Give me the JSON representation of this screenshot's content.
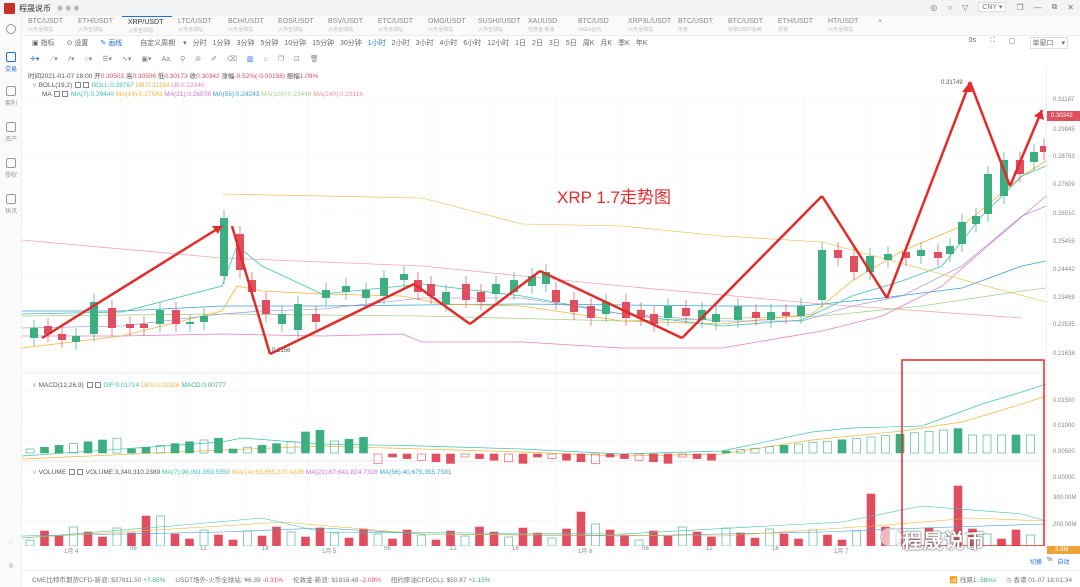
{
  "app": {
    "title": "程晟说币",
    "window_controls": [
      "restore-icon",
      "minimize-icon",
      "maximize-icon",
      "close-icon"
    ],
    "currency": "CNY"
  },
  "sidebar": {
    "items": [
      {
        "label": "交易",
        "icon": "trade-icon",
        "active": true
      },
      {
        "label": "套利",
        "icon": "arbitrage-icon"
      },
      {
        "label": "资产",
        "icon": "wallet-icon"
      },
      {
        "label": "授权",
        "icon": "key-icon"
      },
      {
        "label": "快讯",
        "icon": "news-icon"
      }
    ]
  },
  "pairs": [
    {
      "name": "BTC/USDT",
      "sub": "火币全球站"
    },
    {
      "name": "ETH/USDT",
      "sub": "火币全球站"
    },
    {
      "name": "XRP/USDT",
      "sub": "火币全球站",
      "active": true
    },
    {
      "name": "LTC/USDT",
      "sub": "火币全球站"
    },
    {
      "name": "BCH/USDT",
      "sub": "火币全球站"
    },
    {
      "name": "EOS/USDT",
      "sub": "火币全球站"
    },
    {
      "name": "BSV/USDT",
      "sub": "火币全球站"
    },
    {
      "name": "ETC/USDT",
      "sub": "火币全球站"
    },
    {
      "name": "OMG/USDT",
      "sub": "火币全球站"
    },
    {
      "name": "SUSHI/USDT",
      "sub": "火币全球站"
    },
    {
      "name": "XAUUSD",
      "sub": "伦敦金-新浪"
    },
    {
      "name": "BTC/USD",
      "sub": "OKEx合约"
    },
    {
      "name": "XRP3L/USDT",
      "sub": "火币全球站"
    },
    {
      "name": "BTC/USDT",
      "sub": "币安"
    },
    {
      "name": "BTC/USDT",
      "sub": "币安USDT永续"
    },
    {
      "name": "ETH/USDT",
      "sub": "币安"
    },
    {
      "name": "HT/USDT",
      "sub": "火币全球站"
    }
  ],
  "toolbar": {
    "indicator": "指标",
    "settings": "设置",
    "draw": "画线",
    "custom_period": "自定义周期",
    "periods": [
      "分时",
      "1分钟",
      "3分钟",
      "5分钟",
      "10分钟",
      "15分钟",
      "30分钟",
      "1小时",
      "2小时",
      "3小时",
      "4小时",
      "6小时",
      "12小时",
      "1日",
      "2日",
      "3日",
      "5日",
      "周K",
      "月K",
      "季K",
      "年K"
    ],
    "active_period": "1小时",
    "countdown": "0s",
    "window_mode": "单窗口"
  },
  "info": {
    "time_label": "时间",
    "time": "2021-01-07 18:00",
    "open_label": "开",
    "open": "0.30503",
    "high_label": "高",
    "high": "0.30506",
    "low_label": "低",
    "low": "0.30173",
    "close_label": "收",
    "close": "0.30342",
    "change_label": "涨幅",
    "change": "-0.52%(-0.00158)",
    "amp_label": "振幅",
    "amp": "1.09%"
  },
  "boll": {
    "name": "BOLL(19,2)",
    "boll": "BOLL:0.26767",
    "ub": "UB:0.31194",
    "lb": "LB:0.22340"
  },
  "ma": {
    "name": "MA",
    "ma7": "MA(7):0.29440",
    "ma14": "MA(14):0.27543",
    "ma21": "MA(21):0.26578",
    "ma56": "MA(56):0.24243",
    "ma120": "MA(120):0.23446",
    "ma240": "MA(240):0.23116"
  },
  "macd": {
    "name": "MACD(12,26,9)",
    "dif": "DIF:0.01714",
    "dea": "DEA:0.01326",
    "macd": "MACD:0.00777"
  },
  "volume": {
    "name": "VOLUME",
    "vol": "VOLUME:3,340,310.2389",
    "ma7": "MA(7):96,091,859.5550",
    "ma14": "MA(14):63,655,220.4338",
    "ma21": "MA(21):67,641,824.7328",
    "ma56": "MA(56):40,675,355.7581"
  },
  "price_axis": [
    "0.31187",
    "0.29945",
    "0.28753",
    "0.27609",
    "0.26510",
    "0.25455",
    "0.24442",
    "0.23469",
    "0.22535",
    "0.21638"
  ],
  "current_price": "0.30342",
  "macd_axis": [
    "0.01500",
    "0.01000",
    "0.00500",
    "0.00000"
  ],
  "volume_axis": [
    "300.00M",
    "200.00M",
    "100.00M"
  ],
  "volume_tag": "3.3M",
  "x_axis": [
    "1月 4",
    "06",
    "12",
    "18",
    "1月 5",
    "06",
    "12",
    "18",
    "1月 6",
    "06",
    "12",
    "18",
    "1月 7",
    "06",
    "12"
  ],
  "axis_controls": {
    "scale": "切换",
    "percent": "%",
    "auto": "自动"
  },
  "price_labels": {
    "high": "0.31749",
    "low": "0.2156"
  },
  "annotation": "XRP 1.7走势图",
  "watermark": "程晟说币",
  "status": {
    "items": [
      {
        "label": "CME比特币期货CFD-新浪:",
        "value": "$37811.50",
        "change": "+7.85%",
        "dir": "up"
      },
      {
        "label": "USDT场外-火币全球站:",
        "value": "¥6.39",
        "change": "-0.31%",
        "dir": "down"
      },
      {
        "label": "伦敦金-新浪:",
        "value": "$1916.48",
        "change": "-2.09%",
        "dir": "down"
      },
      {
        "label": "纽约原油CFD(CL):",
        "value": "$50.87",
        "change": "+1.15%",
        "dir": "up"
      }
    ],
    "line_label": "线路1:",
    "latency": "58ms",
    "clock": "香港 01-07 18:01:34"
  },
  "colors": {
    "up": "#3dae80",
    "down": "#e04f5f",
    "accent": "#1f6fde",
    "annotation": "#e32b2b"
  }
}
